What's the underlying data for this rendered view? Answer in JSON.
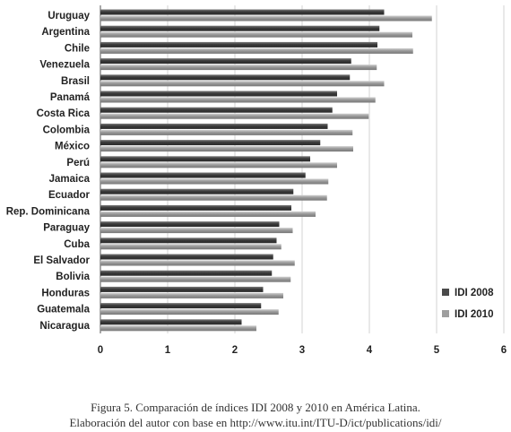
{
  "chart_data": {
    "type": "bar",
    "orientation": "horizontal",
    "categories": [
      "Uruguay",
      "Argentina",
      "Chile",
      "Venezuela",
      "Brasil",
      "Panamá",
      "Costa Rica",
      "Colombia",
      "México",
      "Perú",
      "Jamaica",
      "Ecuador",
      "Rep. Dominicana",
      "Paraguay",
      "Cuba",
      "El Salvador",
      "Bolivia",
      "Honduras",
      "Guatemala",
      "Nicaragua"
    ],
    "series": [
      {
        "name": "IDI 2008",
        "color": "#4a4a4a",
        "values": [
          4.22,
          4.15,
          4.12,
          3.73,
          3.71,
          3.52,
          3.45,
          3.38,
          3.27,
          3.12,
          3.05,
          2.87,
          2.84,
          2.66,
          2.62,
          2.57,
          2.55,
          2.42,
          2.39,
          2.1
        ]
      },
      {
        "name": "IDI 2010",
        "color": "#9e9e9e",
        "values": [
          4.93,
          4.64,
          4.65,
          4.11,
          4.22,
          4.09,
          3.99,
          3.75,
          3.76,
          3.52,
          3.39,
          3.37,
          3.2,
          2.86,
          2.69,
          2.89,
          2.83,
          2.72,
          2.65,
          2.32
        ]
      }
    ],
    "xlim": [
      0,
      6
    ],
    "xticks": [
      "0",
      "1",
      "2",
      "3",
      "4",
      "5",
      "6"
    ],
    "grid": true,
    "legend_position": "bottom-right"
  },
  "caption": {
    "line1": "Figura 5. Comparación de índices IDI 2008 y 2010 en América Latina.",
    "line2": "Elaboración del autor con base en  http://www.itu.int/ITU-D/ict/publications/idi/"
  }
}
